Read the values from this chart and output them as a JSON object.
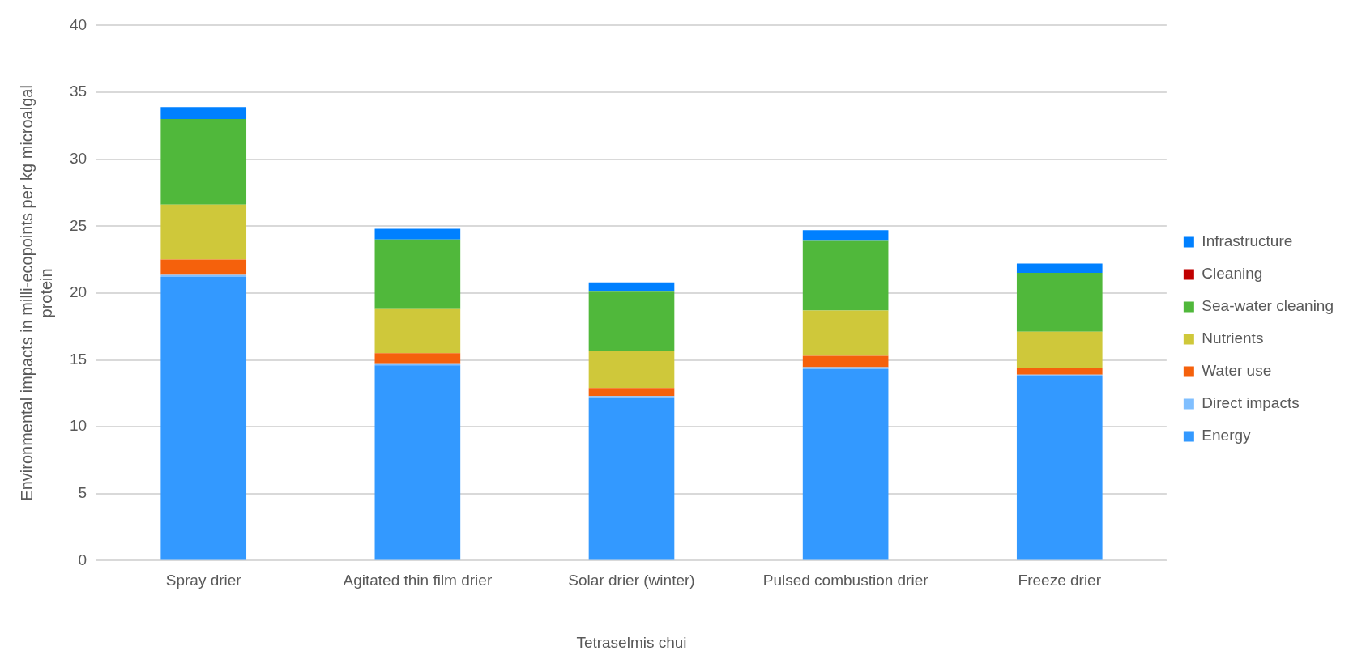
{
  "chart_data": {
    "type": "bar",
    "stacked": true,
    "ylabel": "Environmental impacts in milli-ecopoints per kg microalgal protein",
    "xlabel": "Tetraselmis chui",
    "categories": [
      "Spray drier",
      "Agitated thin film drier",
      "Solar drier (winter)",
      "Pulsed combustion drier",
      "Freeze drier"
    ],
    "series": [
      {
        "name": "Energy",
        "color": "#3399ff",
        "values": [
          21.2,
          14.6,
          12.2,
          14.3,
          13.8
        ]
      },
      {
        "name": "Direct impacts",
        "color": "#80bfff",
        "values": [
          0.15,
          0.15,
          0.1,
          0.15,
          0.1
        ]
      },
      {
        "name": "Water use",
        "color": "#f5610c",
        "values": [
          1.15,
          0.75,
          0.6,
          0.85,
          0.5
        ]
      },
      {
        "name": "Nutrients",
        "color": "#cfc83a",
        "values": [
          4.1,
          3.3,
          2.8,
          3.4,
          2.7
        ]
      },
      {
        "name": "Sea-water cleaning",
        "color": "#50b83b",
        "values": [
          6.4,
          5.2,
          4.4,
          5.2,
          4.4
        ]
      },
      {
        "name": "Cleaning",
        "color": "#c00000",
        "values": [
          0,
          0,
          0,
          0,
          0
        ]
      },
      {
        "name": "Infrastructure",
        "color": "#0080ff",
        "values": [
          0.9,
          0.8,
          0.7,
          0.8,
          0.7
        ]
      }
    ],
    "ylim": [
      0,
      40
    ],
    "yticks": [
      0,
      5,
      10,
      15,
      20,
      25,
      30,
      35,
      40
    ],
    "grid": "y",
    "legend": "right"
  }
}
